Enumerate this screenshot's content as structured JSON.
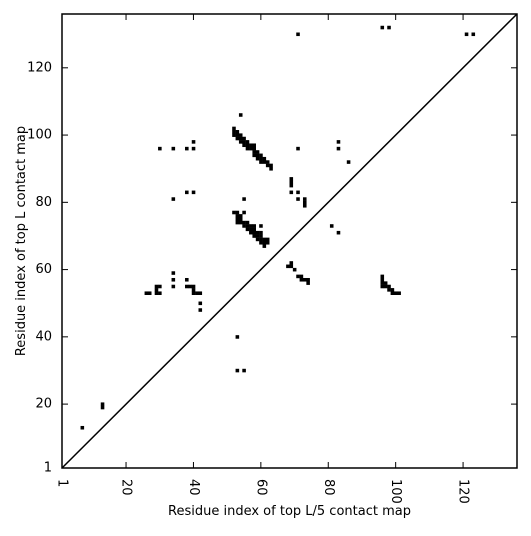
{
  "chart_data": {
    "type": "heatmap",
    "title": "",
    "xlabel": "Residue index of top L/5 contact map",
    "ylabel": "Residue index of top L contact map",
    "xlim": [
      1,
      136
    ],
    "ylim": [
      1,
      136
    ],
    "x_ticks": [
      1,
      20,
      40,
      60,
      80,
      100,
      120
    ],
    "y_ticks": [
      1,
      20,
      40,
      60,
      80,
      100,
      120
    ],
    "x_tick_labels": [
      "1",
      "20",
      "40",
      "60",
      "80",
      "100",
      "120"
    ],
    "y_tick_labels": [
      "1",
      "20",
      "40",
      "60",
      "80",
      "100",
      "120"
    ],
    "x_tick_rotation": -90,
    "diagonal": {
      "from": [
        1,
        1
      ],
      "to": [
        136,
        136
      ]
    },
    "grid": false,
    "colors": {
      "contact": "#000000",
      "background": "#ffffff",
      "frame": "#000000"
    },
    "upper_triangle_contacts": [
      [
        7,
        13
      ],
      [
        13,
        19
      ],
      [
        13,
        20
      ],
      [
        26,
        53
      ],
      [
        27,
        53
      ],
      [
        29,
        53
      ],
      [
        29,
        54
      ],
      [
        29,
        55
      ],
      [
        30,
        53
      ],
      [
        30,
        55
      ],
      [
        34,
        55
      ],
      [
        34,
        57
      ],
      [
        34,
        59
      ],
      [
        38,
        57
      ],
      [
        38,
        55
      ],
      [
        39,
        55
      ],
      [
        40,
        55
      ],
      [
        40,
        54
      ],
      [
        40,
        53
      ],
      [
        41,
        53
      ],
      [
        42,
        53
      ],
      [
        42,
        50
      ],
      [
        42,
        48
      ],
      [
        53,
        40
      ],
      [
        53,
        30
      ],
      [
        55,
        30
      ],
      [
        52,
        77
      ],
      [
        53,
        77
      ],
      [
        53,
        76
      ],
      [
        53,
        75
      ],
      [
        53,
        74
      ],
      [
        54,
        76
      ],
      [
        54,
        75
      ],
      [
        54,
        74
      ],
      [
        55,
        74
      ],
      [
        55,
        73
      ],
      [
        56,
        74
      ],
      [
        56,
        73
      ],
      [
        56,
        72
      ],
      [
        57,
        73
      ],
      [
        57,
        72
      ],
      [
        57,
        71
      ],
      [
        58,
        73
      ],
      [
        58,
        72
      ],
      [
        58,
        71
      ],
      [
        58,
        70
      ],
      [
        59,
        71
      ],
      [
        59,
        70
      ],
      [
        59,
        69
      ],
      [
        60,
        71
      ],
      [
        60,
        70
      ],
      [
        60,
        69
      ],
      [
        60,
        68
      ],
      [
        61,
        69
      ],
      [
        61,
        68
      ],
      [
        61,
        67
      ],
      [
        62,
        69
      ],
      [
        62,
        68
      ],
      [
        55,
        81
      ],
      [
        55,
        77
      ],
      [
        60,
        73
      ],
      [
        68,
        61
      ],
      [
        69,
        62
      ],
      [
        69,
        61
      ],
      [
        70,
        60
      ],
      [
        71,
        58
      ],
      [
        72,
        58
      ],
      [
        72,
        57
      ],
      [
        73,
        57
      ],
      [
        74,
        57
      ],
      [
        74,
        56
      ],
      [
        81,
        73
      ],
      [
        83,
        71
      ],
      [
        96,
        58
      ],
      [
        96,
        57
      ],
      [
        96,
        56
      ],
      [
        96,
        55
      ],
      [
        97,
        56
      ],
      [
        97,
        55
      ],
      [
        98,
        55
      ],
      [
        98,
        54
      ],
      [
        99,
        54
      ],
      [
        99,
        53
      ],
      [
        100,
        53
      ],
      [
        101,
        53
      ],
      [
        30,
        96
      ],
      [
        34,
        96
      ],
      [
        38,
        96
      ],
      [
        40,
        96
      ],
      [
        40,
        98
      ],
      [
        34,
        81
      ],
      [
        38,
        83
      ],
      [
        40,
        83
      ],
      [
        52,
        100
      ],
      [
        52,
        101
      ],
      [
        52,
        102
      ],
      [
        53,
        99
      ],
      [
        53,
        100
      ],
      [
        53,
        101
      ],
      [
        54,
        98
      ],
      [
        54,
        99
      ],
      [
        54,
        100
      ],
      [
        54,
        106
      ],
      [
        55,
        97
      ],
      [
        55,
        98
      ],
      [
        55,
        99
      ],
      [
        56,
        96
      ],
      [
        56,
        97
      ],
      [
        56,
        98
      ],
      [
        57,
        96
      ],
      [
        57,
        97
      ],
      [
        58,
        94
      ],
      [
        58,
        95
      ],
      [
        58,
        96
      ],
      [
        58,
        97
      ],
      [
        59,
        93
      ],
      [
        59,
        94
      ],
      [
        59,
        95
      ],
      [
        60,
        92
      ],
      [
        60,
        93
      ],
      [
        60,
        94
      ],
      [
        61,
        92
      ],
      [
        61,
        93
      ],
      [
        62,
        91
      ],
      [
        62,
        92
      ],
      [
        63,
        90
      ],
      [
        63,
        91
      ],
      [
        69,
        83
      ],
      [
        69,
        85
      ],
      [
        69,
        86
      ],
      [
        69,
        87
      ],
      [
        71,
        81
      ],
      [
        71,
        83
      ],
      [
        71,
        96
      ],
      [
        71,
        130
      ],
      [
        73,
        79
      ],
      [
        73,
        80
      ],
      [
        73,
        81
      ],
      [
        83,
        96
      ],
      [
        83,
        98
      ],
      [
        86,
        92
      ],
      [
        96,
        132
      ],
      [
        98,
        132
      ],
      [
        121,
        130
      ],
      [
        123,
        130
      ]
    ]
  }
}
